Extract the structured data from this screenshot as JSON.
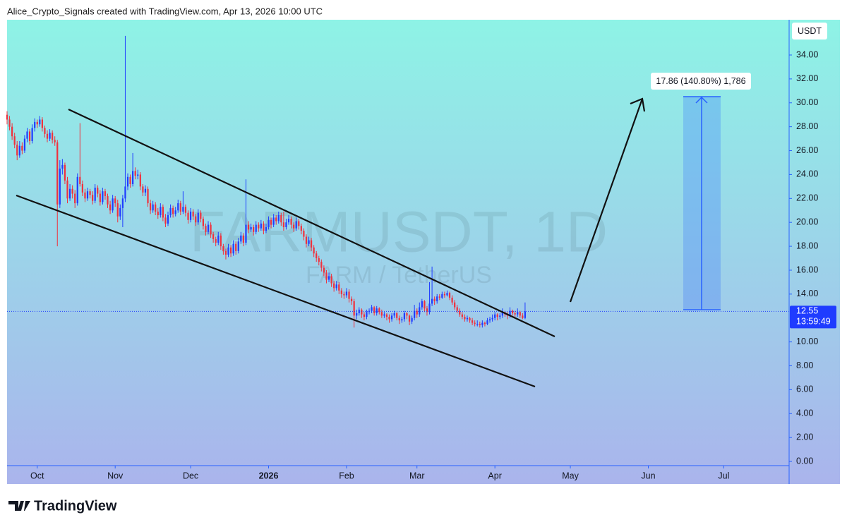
{
  "header": "Alice_Crypto_Signals created with TradingView.com, Apr 13, 2026 10:00 UTC",
  "footer": {
    "logo": "TradingView"
  },
  "chart_data": {
    "type": "candlestick",
    "title": "FARMUSDT, 1D",
    "subtitle": "FARM / TetherUS",
    "y_axis_unit": "USDT",
    "up_color": "#1f3cff",
    "down_color": "#f0303c",
    "xlim": [
      0,
      311
    ],
    "xticks": [
      {
        "value": 12,
        "label": "Oct"
      },
      {
        "value": 43,
        "label": "Nov"
      },
      {
        "value": 73,
        "label": "Dec"
      },
      {
        "value": 104,
        "label": "2026"
      },
      {
        "value": 135,
        "label": "Feb"
      },
      {
        "value": 163,
        "label": "Mar"
      },
      {
        "value": 194,
        "label": "Apr"
      },
      {
        "value": 224,
        "label": "May"
      },
      {
        "value": 255,
        "label": "Jun"
      },
      {
        "value": 285,
        "label": "Jul"
      }
    ],
    "ylim": [
      -0.35,
      36.95
    ],
    "yticks": [
      {
        "value": 0,
        "label": "0.00"
      },
      {
        "value": 2,
        "label": "2.00"
      },
      {
        "value": 4,
        "label": "4.00"
      },
      {
        "value": 6,
        "label": "6.00"
      },
      {
        "value": 8,
        "label": "8.00"
      },
      {
        "value": 10,
        "label": "10.00"
      },
      {
        "value": 14,
        "label": "14.00"
      },
      {
        "value": 16,
        "label": "16.00"
      },
      {
        "value": 18,
        "label": "18.00"
      },
      {
        "value": 20,
        "label": "20.00"
      },
      {
        "value": 22,
        "label": "22.00"
      },
      {
        "value": 24,
        "label": "24.00"
      },
      {
        "value": 26,
        "label": "26.00"
      },
      {
        "value": 28,
        "label": "28.00"
      },
      {
        "value": 30,
        "label": "30.00"
      },
      {
        "value": 32,
        "label": "32.00"
      },
      {
        "value": 34,
        "label": "34.00"
      }
    ],
    "last_price": 12.55,
    "countdown": "13:59:49",
    "annotation": "17.86 (140.80%) 1,786",
    "candles": [
      [
        29.0,
        29.3,
        28.2,
        28.6
      ],
      [
        28.6,
        28.9,
        27.7,
        28.0
      ],
      [
        28.0,
        28.3,
        26.9,
        27.2
      ],
      [
        27.2,
        27.5,
        26.2,
        26.5
      ],
      [
        26.5,
        26.8,
        25.2,
        25.6
      ],
      [
        25.6,
        26.8,
        25.4,
        26.4
      ],
      [
        26.4,
        26.7,
        25.7,
        26.0
      ],
      [
        26.0,
        27.3,
        25.8,
        27.0
      ],
      [
        27.0,
        27.9,
        26.7,
        27.6
      ],
      [
        27.6,
        27.8,
        26.5,
        26.8
      ],
      [
        26.8,
        28.2,
        26.6,
        27.9
      ],
      [
        27.9,
        28.7,
        27.6,
        28.4
      ],
      [
        28.4,
        28.6,
        27.9,
        28.2
      ],
      [
        28.2,
        28.9,
        28.0,
        28.6
      ],
      [
        28.6,
        28.8,
        27.6,
        27.9
      ],
      [
        27.9,
        28.1,
        27.1,
        27.4
      ],
      [
        27.4,
        27.7,
        26.7,
        27.0
      ],
      [
        27.0,
        27.8,
        26.8,
        27.5
      ],
      [
        27.5,
        27.7,
        26.6,
        26.9
      ],
      [
        26.9,
        27.2,
        26.4,
        26.7
      ],
      [
        26.7,
        26.9,
        18.0,
        21.5
      ],
      [
        21.5,
        25.2,
        21.2,
        24.5
      ],
      [
        24.5,
        25.3,
        24.0,
        24.8
      ],
      [
        24.8,
        25.0,
        23.2,
        23.5
      ],
      [
        23.5,
        23.8,
        21.6,
        22.0
      ],
      [
        22.0,
        23.2,
        21.8,
        22.8
      ],
      [
        22.8,
        23.1,
        22.0,
        22.4
      ],
      [
        22.4,
        22.7,
        21.2,
        21.6
      ],
      [
        21.6,
        24.1,
        21.4,
        23.8
      ],
      [
        23.8,
        28.3,
        23.0,
        23.2
      ],
      [
        23.2,
        23.5,
        22.2,
        22.5
      ],
      [
        22.5,
        22.8,
        21.7,
        22.0
      ],
      [
        22.0,
        22.9,
        21.8,
        22.6
      ],
      [
        22.6,
        22.8,
        22.0,
        22.3
      ],
      [
        22.3,
        22.6,
        21.5,
        21.8
      ],
      [
        21.8,
        23.2,
        21.6,
        22.9
      ],
      [
        22.9,
        23.1,
        22.1,
        22.4
      ],
      [
        22.4,
        22.7,
        21.4,
        21.7
      ],
      [
        21.7,
        22.9,
        21.5,
        22.6
      ],
      [
        22.6,
        22.8,
        21.9,
        22.2
      ],
      [
        22.2,
        22.4,
        21.2,
        21.5
      ],
      [
        21.5,
        21.8,
        20.7,
        21.0
      ],
      [
        21.0,
        22.3,
        20.8,
        22.0
      ],
      [
        22.0,
        22.2,
        21.3,
        21.6
      ],
      [
        21.6,
        21.9,
        20.0,
        20.5
      ],
      [
        20.5,
        21.5,
        20.2,
        21.2
      ],
      [
        21.2,
        22.3,
        19.6,
        22.0
      ],
      [
        22.0,
        35.6,
        21.7,
        23.0
      ],
      [
        23.0,
        24.1,
        22.7,
        23.8
      ],
      [
        23.8,
        24.0,
        22.9,
        23.2
      ],
      [
        23.2,
        25.8,
        23.0,
        24.3
      ],
      [
        24.3,
        24.6,
        23.6,
        23.9
      ],
      [
        23.9,
        24.4,
        23.6,
        24.0
      ],
      [
        24.0,
        24.2,
        22.7,
        23.0
      ],
      [
        23.0,
        23.2,
        22.2,
        22.5
      ],
      [
        22.5,
        23.1,
        22.2,
        22.8
      ],
      [
        22.8,
        23.0,
        21.3,
        21.6
      ],
      [
        21.6,
        21.9,
        20.7,
        21.0
      ],
      [
        21.0,
        21.8,
        20.8,
        21.5
      ],
      [
        21.5,
        21.7,
        20.6,
        20.9
      ],
      [
        20.9,
        21.2,
        20.3,
        20.6
      ],
      [
        20.6,
        21.6,
        20.4,
        21.3
      ],
      [
        21.3,
        21.5,
        20.1,
        20.4
      ],
      [
        20.4,
        20.7,
        19.6,
        19.9
      ],
      [
        19.9,
        20.9,
        19.7,
        20.6
      ],
      [
        20.6,
        21.5,
        20.4,
        21.2
      ],
      [
        21.2,
        21.4,
        20.4,
        20.7
      ],
      [
        20.7,
        21.3,
        20.5,
        21.0
      ],
      [
        21.0,
        21.9,
        20.8,
        21.6
      ],
      [
        21.6,
        21.8,
        20.6,
        20.9
      ],
      [
        20.9,
        22.6,
        20.7,
        21.3
      ],
      [
        21.3,
        21.5,
        20.5,
        20.8
      ],
      [
        20.8,
        21.0,
        19.9,
        20.2
      ],
      [
        20.2,
        21.2,
        20.0,
        20.9
      ],
      [
        20.9,
        21.1,
        20.2,
        20.5
      ],
      [
        20.5,
        20.7,
        19.7,
        20.0
      ],
      [
        20.0,
        21.1,
        19.8,
        20.8
      ],
      [
        20.8,
        21.0,
        20.0,
        20.3
      ],
      [
        20.3,
        20.5,
        19.4,
        19.7
      ],
      [
        19.7,
        19.9,
        18.9,
        19.2
      ],
      [
        19.2,
        20.1,
        19.0,
        19.8
      ],
      [
        19.8,
        20.0,
        18.7,
        19.0
      ],
      [
        19.0,
        19.2,
        18.3,
        18.6
      ],
      [
        18.6,
        18.8,
        18.0,
        18.3
      ],
      [
        18.3,
        19.2,
        18.1,
        18.9
      ],
      [
        18.9,
        19.1,
        17.7,
        18.0
      ],
      [
        18.0,
        18.2,
        17.3,
        17.6
      ],
      [
        17.6,
        17.8,
        16.9,
        17.3
      ],
      [
        17.3,
        18.2,
        17.1,
        17.9
      ],
      [
        17.9,
        18.1,
        17.1,
        17.4
      ],
      [
        17.4,
        18.5,
        17.2,
        18.2
      ],
      [
        18.2,
        18.4,
        17.3,
        17.6
      ],
      [
        17.6,
        18.7,
        17.4,
        18.4
      ],
      [
        18.4,
        19.2,
        18.2,
        18.9
      ],
      [
        18.9,
        19.1,
        18.0,
        18.3
      ],
      [
        18.3,
        23.6,
        18.1,
        19.8
      ],
      [
        19.8,
        20.1,
        19.1,
        19.4
      ],
      [
        19.4,
        19.9,
        19.2,
        19.6
      ],
      [
        19.6,
        19.8,
        18.9,
        19.2
      ],
      [
        19.2,
        20.1,
        19.0,
        19.8
      ],
      [
        19.8,
        20.0,
        19.2,
        19.5
      ],
      [
        19.5,
        20.2,
        19.3,
        19.9
      ],
      [
        19.9,
        20.1,
        19.0,
        19.3
      ],
      [
        19.3,
        19.9,
        19.1,
        19.6
      ],
      [
        19.6,
        20.5,
        19.4,
        20.2
      ],
      [
        20.2,
        20.4,
        19.5,
        19.8
      ],
      [
        19.8,
        20.7,
        19.6,
        20.4
      ],
      [
        20.4,
        20.6,
        19.8,
        20.1
      ],
      [
        20.1,
        20.9,
        19.9,
        20.6
      ],
      [
        20.6,
        20.8,
        19.7,
        20.0
      ],
      [
        20.0,
        20.9,
        19.3,
        19.6
      ],
      [
        19.6,
        20.3,
        19.4,
        20.0
      ],
      [
        20.0,
        20.6,
        19.8,
        20.3
      ],
      [
        20.3,
        20.5,
        19.5,
        19.8
      ],
      [
        19.8,
        20.0,
        19.2,
        19.5
      ],
      [
        19.5,
        20.4,
        19.3,
        20.1
      ],
      [
        20.1,
        20.3,
        19.4,
        19.7
      ],
      [
        19.7,
        19.9,
        19.0,
        19.3
      ],
      [
        19.3,
        19.5,
        18.5,
        18.8
      ],
      [
        18.8,
        19.0,
        17.9,
        18.2
      ],
      [
        18.2,
        18.8,
        18.0,
        18.5
      ],
      [
        18.5,
        18.7,
        17.6,
        17.9
      ],
      [
        17.9,
        18.1,
        17.1,
        17.4
      ],
      [
        17.4,
        17.6,
        16.7,
        17.0
      ],
      [
        17.0,
        17.2,
        16.4,
        16.7
      ],
      [
        16.7,
        16.9,
        15.9,
        16.2
      ],
      [
        16.2,
        16.4,
        15.5,
        15.8
      ],
      [
        15.8,
        16.0,
        14.9,
        15.2
      ],
      [
        15.2,
        15.8,
        15.0,
        15.5
      ],
      [
        15.5,
        15.7,
        14.6,
        14.9
      ],
      [
        14.9,
        15.1,
        14.2,
        14.5
      ],
      [
        14.5,
        15.1,
        14.3,
        14.8
      ],
      [
        14.8,
        15.0,
        14.0,
        14.3
      ],
      [
        14.3,
        14.5,
        13.7,
        14.0
      ],
      [
        14.0,
        14.2,
        13.6,
        13.9
      ],
      [
        13.9,
        14.5,
        13.7,
        14.2
      ],
      [
        14.2,
        14.4,
        13.3,
        13.6
      ],
      [
        13.6,
        13.8,
        13.1,
        13.4
      ],
      [
        13.4,
        13.6,
        11.2,
        12.2
      ],
      [
        12.2,
        12.7,
        11.9,
        12.4
      ],
      [
        12.4,
        12.9,
        12.2,
        12.7
      ],
      [
        12.7,
        12.8,
        12.0,
        12.3
      ],
      [
        12.3,
        12.5,
        11.8,
        12.1
      ],
      [
        12.1,
        12.7,
        11.9,
        12.5
      ],
      [
        12.5,
        12.8,
        12.3,
        12.6
      ],
      [
        12.6,
        13.1,
        12.4,
        12.9
      ],
      [
        12.9,
        13.0,
        12.2,
        12.4
      ],
      [
        12.4,
        13.0,
        12.2,
        12.8
      ],
      [
        12.8,
        12.9,
        12.3,
        12.5
      ],
      [
        12.5,
        12.7,
        12.0,
        12.2
      ],
      [
        12.2,
        12.5,
        12.0,
        12.3
      ],
      [
        12.3,
        12.4,
        11.8,
        12.1
      ],
      [
        12.1,
        12.3,
        11.6,
        11.9
      ],
      [
        11.9,
        12.4,
        11.7,
        12.2
      ],
      [
        12.2,
        12.6,
        12.0,
        12.4
      ],
      [
        12.4,
        12.5,
        11.8,
        12.0
      ],
      [
        12.0,
        12.2,
        11.5,
        11.8
      ],
      [
        11.8,
        12.1,
        11.6,
        11.9
      ],
      [
        11.9,
        12.6,
        11.7,
        12.4
      ],
      [
        12.4,
        12.5,
        11.9,
        12.2
      ],
      [
        12.2,
        12.3,
        11.4,
        11.7
      ],
      [
        11.7,
        12.2,
        11.5,
        12.0
      ],
      [
        12.0,
        13.1,
        11.8,
        12.6
      ],
      [
        12.6,
        12.8,
        12.0,
        12.3
      ],
      [
        12.3,
        13.3,
        12.1,
        12.9
      ],
      [
        12.9,
        13.6,
        12.7,
        13.4
      ],
      [
        13.4,
        13.5,
        12.5,
        12.8
      ],
      [
        12.8,
        13.0,
        12.2,
        12.5
      ],
      [
        12.5,
        15.0,
        12.3,
        13.2
      ],
      [
        13.2,
        16.3,
        13.0,
        13.6
      ],
      [
        13.6,
        13.8,
        13.1,
        13.4
      ],
      [
        13.4,
        14.0,
        13.2,
        13.8
      ],
      [
        13.8,
        14.0,
        13.5,
        13.7
      ],
      [
        13.7,
        14.2,
        13.6,
        14.0
      ],
      [
        14.0,
        14.2,
        13.7,
        13.9
      ],
      [
        13.9,
        14.3,
        13.8,
        14.1
      ],
      [
        14.1,
        14.2,
        13.5,
        13.7
      ],
      [
        13.7,
        13.9,
        13.1,
        13.3
      ],
      [
        13.3,
        13.5,
        12.7,
        12.9
      ],
      [
        12.9,
        13.1,
        12.4,
        12.6
      ],
      [
        12.6,
        12.8,
        12.1,
        12.3
      ],
      [
        12.3,
        12.5,
        11.9,
        12.1
      ],
      [
        12.1,
        12.3,
        11.7,
        11.9
      ],
      [
        11.9,
        12.2,
        11.7,
        12.0
      ],
      [
        12.0,
        12.1,
        11.6,
        11.8
      ],
      [
        11.8,
        12.0,
        11.4,
        11.6
      ],
      [
        11.6,
        11.8,
        11.3,
        11.5
      ],
      [
        11.5,
        11.8,
        11.3,
        11.5
      ],
      [
        11.5,
        11.7,
        11.2,
        11.4
      ],
      [
        11.4,
        11.8,
        11.2,
        11.6
      ],
      [
        11.6,
        11.7,
        11.3,
        11.5
      ],
      [
        11.5,
        12.0,
        11.4,
        11.8
      ],
      [
        11.8,
        12.1,
        11.6,
        11.9
      ],
      [
        11.9,
        12.3,
        11.7,
        12.0
      ],
      [
        12.0,
        12.5,
        11.8,
        12.3
      ],
      [
        12.3,
        12.4,
        11.8,
        12.1
      ],
      [
        12.1,
        12.4,
        11.9,
        12.2
      ],
      [
        12.2,
        12.8,
        12.0,
        12.5
      ],
      [
        12.5,
        12.6,
        12.1,
        12.3
      ],
      [
        12.3,
        12.5,
        11.9,
        12.2
      ],
      [
        12.2,
        12.9,
        12.0,
        12.6
      ],
      [
        12.6,
        12.7,
        12.2,
        12.4
      ],
      [
        12.4,
        12.6,
        12.1,
        12.3
      ],
      [
        12.3,
        12.8,
        12.1,
        12.5
      ],
      [
        12.5,
        12.6,
        12.0,
        12.2
      ],
      [
        12.2,
        12.4,
        11.9,
        12.0
      ],
      [
        12.0,
        13.3,
        11.9,
        12.55
      ]
    ]
  }
}
